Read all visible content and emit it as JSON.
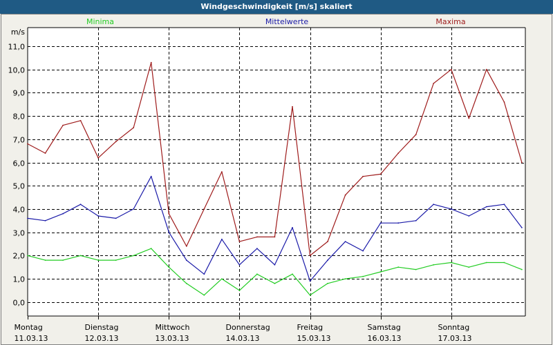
{
  "window": {
    "title": "Windgeschwindigkeit [m/s] skaliert"
  },
  "chart_data": {
    "type": "line",
    "title": "Windgeschwindigkeit [m/s] skaliert",
    "ylabel": "m/s",
    "xlabel": "",
    "ylim": [
      -0.6,
      11.8
    ],
    "yticks": [
      0,
      1,
      2,
      3,
      4,
      5,
      6,
      7,
      8,
      9,
      10,
      11
    ],
    "ytick_labels": [
      "0,0",
      "1,0",
      "2,0",
      "3,0",
      "4,0",
      "5,0",
      "6,0",
      "7,0",
      "8,0",
      "9,0",
      "10,0",
      "11,0"
    ],
    "xlim": [
      0,
      7.05
    ],
    "grid": true,
    "day_ticks": [
      {
        "day": "Montag",
        "date": "11.03.13"
      },
      {
        "day": "Dienstag",
        "date": "12.03.13"
      },
      {
        "day": "Mittwoch",
        "date": "13.03.13"
      },
      {
        "day": "Donnerstag",
        "date": "14.03.13"
      },
      {
        "day": "Freitag",
        "date": "15.03.13"
      },
      {
        "day": "Samstag",
        "date": "16.03.13"
      },
      {
        "day": "Sonntag",
        "date": "17.03.13"
      }
    ],
    "legend": [
      "Minima",
      "Mittelwerte",
      "Maxima"
    ],
    "series": [
      {
        "name": "Minima",
        "color": "#22cc22",
        "x": [
          0,
          0.25,
          0.5,
          0.75,
          1,
          1.25,
          1.5,
          1.75,
          2,
          2.25,
          2.5,
          2.75,
          3,
          3.25,
          3.5,
          3.75,
          4,
          4.25,
          4.5,
          4.75,
          5,
          5.25,
          5.5,
          5.75,
          6,
          6.25,
          6.5,
          6.75,
          7
        ],
        "values": [
          2.0,
          1.8,
          1.8,
          2.0,
          1.8,
          1.8,
          2.0,
          2.3,
          1.5,
          0.8,
          0.3,
          1.0,
          0.5,
          1.2,
          0.8,
          1.2,
          0.3,
          0.8,
          1.0,
          1.1,
          1.3,
          1.5,
          1.4,
          1.6,
          1.7,
          1.5,
          1.7,
          1.7,
          1.4
        ]
      },
      {
        "name": "Mittelwerte",
        "color": "#1a1aa8",
        "x": [
          0,
          0.25,
          0.5,
          0.75,
          1,
          1.25,
          1.5,
          1.75,
          2,
          2.25,
          2.5,
          2.75,
          3,
          3.25,
          3.5,
          3.75,
          4,
          4.25,
          4.5,
          4.75,
          5,
          5.25,
          5.5,
          5.75,
          6,
          6.25,
          6.5,
          6.75,
          7
        ],
        "values": [
          3.6,
          3.5,
          3.8,
          4.2,
          3.7,
          3.6,
          4.0,
          5.4,
          3.0,
          1.8,
          1.2,
          2.7,
          1.6,
          2.3,
          1.6,
          3.2,
          0.9,
          1.8,
          2.6,
          2.2,
          3.4,
          3.4,
          3.5,
          4.2,
          4.0,
          3.7,
          4.1,
          4.2,
          3.2
        ]
      },
      {
        "name": "Maxima",
        "color": "#9e1a1a",
        "x": [
          0,
          0.25,
          0.5,
          0.75,
          1,
          1.25,
          1.5,
          1.75,
          2,
          2.25,
          2.5,
          2.75,
          3,
          3.25,
          3.5,
          3.75,
          4,
          4.25,
          4.5,
          4.75,
          5,
          5.25,
          5.5,
          5.75,
          6,
          6.25,
          6.5,
          6.75,
          7
        ],
        "values": [
          6.8,
          6.4,
          7.6,
          7.8,
          6.2,
          6.9,
          7.5,
          10.3,
          3.8,
          2.4,
          4.0,
          5.6,
          2.6,
          2.8,
          2.8,
          8.4,
          2.0,
          2.6,
          4.6,
          5.4,
          5.5,
          6.4,
          7.2,
          9.4,
          10.0,
          7.9,
          10.0,
          8.6,
          6.0
        ]
      }
    ]
  }
}
